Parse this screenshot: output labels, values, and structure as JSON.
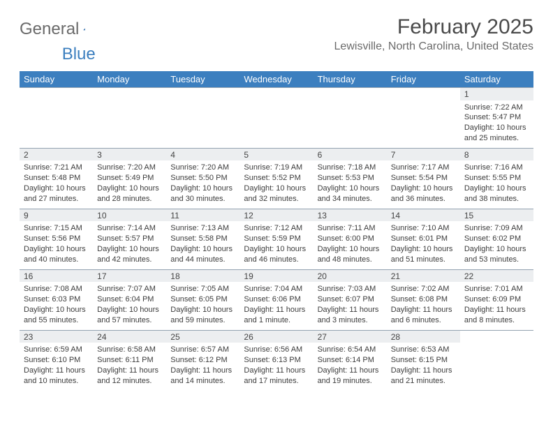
{
  "brand": {
    "part1": "General",
    "part2": "Blue"
  },
  "colors": {
    "header_bg": "#3c7fbf",
    "header_text": "#ffffff",
    "daynum_bg": "#eceef0",
    "border": "#92a1b0",
    "title": "#4a4a4a",
    "subtitle": "#6a6a6a",
    "cell_text": "#3c3c3c"
  },
  "title": "February 2025",
  "location": "Lewisville, North Carolina, United States",
  "day_headers": [
    "Sunday",
    "Monday",
    "Tuesday",
    "Wednesday",
    "Thursday",
    "Friday",
    "Saturday"
  ],
  "weeks": [
    [
      {
        "num": "",
        "text": ""
      },
      {
        "num": "",
        "text": ""
      },
      {
        "num": "",
        "text": ""
      },
      {
        "num": "",
        "text": ""
      },
      {
        "num": "",
        "text": ""
      },
      {
        "num": "",
        "text": ""
      },
      {
        "num": "1",
        "text": "Sunrise: 7:22 AM\nSunset: 5:47 PM\nDaylight: 10 hours and 25 minutes."
      }
    ],
    [
      {
        "num": "2",
        "text": "Sunrise: 7:21 AM\nSunset: 5:48 PM\nDaylight: 10 hours and 27 minutes."
      },
      {
        "num": "3",
        "text": "Sunrise: 7:20 AM\nSunset: 5:49 PM\nDaylight: 10 hours and 28 minutes."
      },
      {
        "num": "4",
        "text": "Sunrise: 7:20 AM\nSunset: 5:50 PM\nDaylight: 10 hours and 30 minutes."
      },
      {
        "num": "5",
        "text": "Sunrise: 7:19 AM\nSunset: 5:52 PM\nDaylight: 10 hours and 32 minutes."
      },
      {
        "num": "6",
        "text": "Sunrise: 7:18 AM\nSunset: 5:53 PM\nDaylight: 10 hours and 34 minutes."
      },
      {
        "num": "7",
        "text": "Sunrise: 7:17 AM\nSunset: 5:54 PM\nDaylight: 10 hours and 36 minutes."
      },
      {
        "num": "8",
        "text": "Sunrise: 7:16 AM\nSunset: 5:55 PM\nDaylight: 10 hours and 38 minutes."
      }
    ],
    [
      {
        "num": "9",
        "text": "Sunrise: 7:15 AM\nSunset: 5:56 PM\nDaylight: 10 hours and 40 minutes."
      },
      {
        "num": "10",
        "text": "Sunrise: 7:14 AM\nSunset: 5:57 PM\nDaylight: 10 hours and 42 minutes."
      },
      {
        "num": "11",
        "text": "Sunrise: 7:13 AM\nSunset: 5:58 PM\nDaylight: 10 hours and 44 minutes."
      },
      {
        "num": "12",
        "text": "Sunrise: 7:12 AM\nSunset: 5:59 PM\nDaylight: 10 hours and 46 minutes."
      },
      {
        "num": "13",
        "text": "Sunrise: 7:11 AM\nSunset: 6:00 PM\nDaylight: 10 hours and 48 minutes."
      },
      {
        "num": "14",
        "text": "Sunrise: 7:10 AM\nSunset: 6:01 PM\nDaylight: 10 hours and 51 minutes."
      },
      {
        "num": "15",
        "text": "Sunrise: 7:09 AM\nSunset: 6:02 PM\nDaylight: 10 hours and 53 minutes."
      }
    ],
    [
      {
        "num": "16",
        "text": "Sunrise: 7:08 AM\nSunset: 6:03 PM\nDaylight: 10 hours and 55 minutes."
      },
      {
        "num": "17",
        "text": "Sunrise: 7:07 AM\nSunset: 6:04 PM\nDaylight: 10 hours and 57 minutes."
      },
      {
        "num": "18",
        "text": "Sunrise: 7:05 AM\nSunset: 6:05 PM\nDaylight: 10 hours and 59 minutes."
      },
      {
        "num": "19",
        "text": "Sunrise: 7:04 AM\nSunset: 6:06 PM\nDaylight: 11 hours and 1 minute."
      },
      {
        "num": "20",
        "text": "Sunrise: 7:03 AM\nSunset: 6:07 PM\nDaylight: 11 hours and 3 minutes."
      },
      {
        "num": "21",
        "text": "Sunrise: 7:02 AM\nSunset: 6:08 PM\nDaylight: 11 hours and 6 minutes."
      },
      {
        "num": "22",
        "text": "Sunrise: 7:01 AM\nSunset: 6:09 PM\nDaylight: 11 hours and 8 minutes."
      }
    ],
    [
      {
        "num": "23",
        "text": "Sunrise: 6:59 AM\nSunset: 6:10 PM\nDaylight: 11 hours and 10 minutes."
      },
      {
        "num": "24",
        "text": "Sunrise: 6:58 AM\nSunset: 6:11 PM\nDaylight: 11 hours and 12 minutes."
      },
      {
        "num": "25",
        "text": "Sunrise: 6:57 AM\nSunset: 6:12 PM\nDaylight: 11 hours and 14 minutes."
      },
      {
        "num": "26",
        "text": "Sunrise: 6:56 AM\nSunset: 6:13 PM\nDaylight: 11 hours and 17 minutes."
      },
      {
        "num": "27",
        "text": "Sunrise: 6:54 AM\nSunset: 6:14 PM\nDaylight: 11 hours and 19 minutes."
      },
      {
        "num": "28",
        "text": "Sunrise: 6:53 AM\nSunset: 6:15 PM\nDaylight: 11 hours and 21 minutes."
      },
      {
        "num": "",
        "text": ""
      }
    ]
  ]
}
